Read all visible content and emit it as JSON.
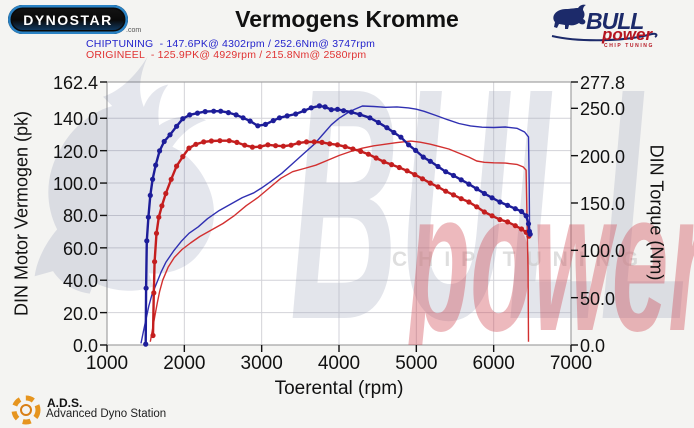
{
  "header": {
    "title": "Vermogens Kromme",
    "logo_left": {
      "name": "DYNOSTAR",
      "suffix": ".com"
    },
    "logo_right": {
      "brand": "BULL",
      "sub_brand": "power",
      "tagline": "CHIP TUNING"
    },
    "legend": [
      {
        "id": "chiptuning",
        "text": "CHIPTUNING  - 147.6PK@ 4302rpm / 252.6Nm@ 3747rpm",
        "color": "#2323cc"
      },
      {
        "id": "origineel",
        "text": "ORIGINEEL  - 125.9PK@ 4929rpm / 215.8Nm@ 2580rpm",
        "color": "#e03333"
      }
    ]
  },
  "footer": {
    "station_abbr": "A.D.S.",
    "station_name": "Advanced Dyno Station"
  },
  "watermark": {
    "brand": "BULL",
    "sub_brand": "power",
    "tagline": "CHIP TUNING"
  },
  "colors": {
    "power_chip": "#3030b2",
    "torque_chip": "#1d1d99",
    "power_orig": "#d23030",
    "torque_orig": "#c41e1e",
    "grid": "#d2d2d8",
    "frame": "#a2a2a2",
    "tick": "#111111",
    "plot_bg": "#ffffff"
  },
  "chart_data": {
    "type": "line",
    "title": "Vermogens Kromme",
    "xlabel": "Toerental (rpm)",
    "ylabel_left": "DIN Motor Vermogen (pk)",
    "ylabel_right": "DIN Torque (Nm)",
    "xlim": [
      1000,
      7000
    ],
    "ylim_left": [
      0,
      162.4
    ],
    "ylim_right": [
      0,
      277.8
    ],
    "x_ticks": [
      1000,
      2000,
      3000,
      4000,
      5000,
      6000,
      7000
    ],
    "y_left_ticks": [
      0,
      20,
      40,
      60,
      80,
      100,
      120,
      140,
      162.4
    ],
    "y_right_ticks": [
      0,
      50,
      100,
      150,
      200,
      250,
      277.8
    ],
    "grid": true,
    "peaks": {
      "chiptuning": {
        "power_pk": 147.6,
        "power_rpm": 4302,
        "torque_nm": 252.6,
        "torque_rpm": 3747
      },
      "origineel": {
        "power_pk": 125.9,
        "power_rpm": 4929,
        "torque_nm": 215.8,
        "torque_rpm": 2580
      }
    },
    "series": [
      {
        "name": "origineel-power",
        "axis": "left",
        "unit": "pk",
        "markers": false,
        "width": 1.4,
        "color": "#d23030",
        "points": [
          [
            1560,
            2
          ],
          [
            1590,
            10
          ],
          [
            1620,
            18
          ],
          [
            1650,
            26
          ],
          [
            1680,
            33
          ],
          [
            1720,
            40
          ],
          [
            1790,
            48
          ],
          [
            1870,
            54
          ],
          [
            1970,
            59
          ],
          [
            2080,
            63
          ],
          [
            2200,
            67
          ],
          [
            2350,
            71
          ],
          [
            2500,
            75
          ],
          [
            2650,
            80
          ],
          [
            2800,
            86
          ],
          [
            2950,
            91
          ],
          [
            3100,
            97
          ],
          [
            3250,
            103
          ],
          [
            3400,
            107
          ],
          [
            3550,
            109
          ],
          [
            3700,
            111
          ],
          [
            3850,
            114
          ],
          [
            4000,
            117
          ],
          [
            4150,
            119.5
          ],
          [
            4300,
            121.5
          ],
          [
            4450,
            123
          ],
          [
            4600,
            124
          ],
          [
            4750,
            125
          ],
          [
            4929,
            125.9
          ],
          [
            5050,
            125.2
          ],
          [
            5180,
            124
          ],
          [
            5300,
            122.5
          ],
          [
            5420,
            121
          ],
          [
            5550,
            118.5
          ],
          [
            5680,
            116
          ],
          [
            5780,
            113.6
          ],
          [
            5880,
            112.8
          ],
          [
            6000,
            112.5
          ],
          [
            6150,
            112.3
          ],
          [
            6300,
            111.5
          ],
          [
            6380,
            110
          ],
          [
            6420,
            108
          ],
          [
            6445,
            44
          ],
          [
            6450,
            2
          ]
        ]
      },
      {
        "name": "chiptuning-power",
        "axis": "left",
        "unit": "pk",
        "markers": false,
        "width": 1.4,
        "color": "#3030b2",
        "points": [
          [
            1440,
            1
          ],
          [
            1470,
            8
          ],
          [
            1500,
            15
          ],
          [
            1540,
            24
          ],
          [
            1580,
            31
          ],
          [
            1640,
            38
          ],
          [
            1700,
            45
          ],
          [
            1760,
            51
          ],
          [
            1860,
            58
          ],
          [
            1960,
            64
          ],
          [
            2060,
            69
          ],
          [
            2180,
            73
          ],
          [
            2300,
            78
          ],
          [
            2450,
            83
          ],
          [
            2600,
            87
          ],
          [
            2750,
            91
          ],
          [
            2900,
            94
          ],
          [
            3000,
            97
          ],
          [
            3120,
            101
          ],
          [
            3260,
            106
          ],
          [
            3400,
            112
          ],
          [
            3540,
            118
          ],
          [
            3680,
            124
          ],
          [
            3790,
            130
          ],
          [
            3900,
            136
          ],
          [
            4000,
            140
          ],
          [
            4100,
            143
          ],
          [
            4200,
            145.5
          ],
          [
            4302,
            147.6
          ],
          [
            4450,
            147.3
          ],
          [
            4600,
            146.8
          ],
          [
            4750,
            147
          ],
          [
            4900,
            146.4
          ],
          [
            5000,
            145.6
          ],
          [
            5100,
            144.3
          ],
          [
            5250,
            141.8
          ],
          [
            5400,
            139.2
          ],
          [
            5550,
            136.8
          ],
          [
            5700,
            135.3
          ],
          [
            5850,
            134.5
          ],
          [
            6000,
            134.3
          ],
          [
            6150,
            134.6
          ],
          [
            6300,
            133.8
          ],
          [
            6400,
            131.5
          ],
          [
            6450,
            128.5
          ],
          [
            6460,
            100
          ],
          [
            6465,
            67
          ]
        ]
      },
      {
        "name": "origineel-torque",
        "axis": "right",
        "unit": "Nm",
        "markers": true,
        "width": 2.4,
        "color": "#c41e1e",
        "points": [
          [
            1595,
            10
          ],
          [
            1605,
            55
          ],
          [
            1615,
            88
          ],
          [
            1640,
            118
          ],
          [
            1670,
            135
          ],
          [
            1710,
            147
          ],
          [
            1760,
            160
          ],
          [
            1830,
            175
          ],
          [
            1900,
            189
          ],
          [
            1980,
            199
          ],
          [
            2060,
            208
          ],
          [
            2150,
            212
          ],
          [
            2250,
            214.5
          ],
          [
            2350,
            215.5
          ],
          [
            2460,
            215.8
          ],
          [
            2580,
            215.8
          ],
          [
            2680,
            214
          ],
          [
            2780,
            211
          ],
          [
            2880,
            209
          ],
          [
            2980,
            209.5
          ],
          [
            3080,
            211.5
          ],
          [
            3180,
            210.5
          ],
          [
            3280,
            210
          ],
          [
            3380,
            211
          ],
          [
            3480,
            213.5
          ],
          [
            3580,
            214.5
          ],
          [
            3680,
            214.5
          ],
          [
            3780,
            214
          ],
          [
            3880,
            212.5
          ],
          [
            3980,
            211.5
          ],
          [
            4080,
            209.5
          ],
          [
            4180,
            207
          ],
          [
            4280,
            204.5
          ],
          [
            4380,
            201.5
          ],
          [
            4480,
            197.5
          ],
          [
            4580,
            193.5
          ],
          [
            4680,
            190.5
          ],
          [
            4780,
            187.5
          ],
          [
            4880,
            184
          ],
          [
            4980,
            180
          ],
          [
            5080,
            175.5
          ],
          [
            5180,
            171
          ],
          [
            5280,
            167
          ],
          [
            5380,
            162.5
          ],
          [
            5480,
            158.5
          ],
          [
            5580,
            154.5
          ],
          [
            5680,
            151
          ],
          [
            5780,
            146
          ],
          [
            5880,
            140.5
          ],
          [
            5980,
            136.5
          ],
          [
            6080,
            132.5
          ],
          [
            6180,
            130
          ],
          [
            6280,
            126
          ],
          [
            6360,
            122.5
          ],
          [
            6420,
            119
          ],
          [
            6455,
            115
          ]
        ]
      },
      {
        "name": "chiptuning-torque",
        "axis": "right",
        "unit": "Nm",
        "markers": true,
        "width": 2.4,
        "color": "#1d1d99",
        "points": [
          [
            1500,
            1
          ],
          [
            1505,
            60
          ],
          [
            1515,
            110
          ],
          [
            1535,
            135
          ],
          [
            1560,
            158
          ],
          [
            1590,
            175
          ],
          [
            1630,
            190
          ],
          [
            1680,
            205
          ],
          [
            1740,
            215
          ],
          [
            1815,
            222
          ],
          [
            1900,
            231
          ],
          [
            1980,
            239
          ],
          [
            2070,
            243
          ],
          [
            2170,
            245
          ],
          [
            2270,
            246.5
          ],
          [
            2380,
            247
          ],
          [
            2470,
            247
          ],
          [
            2570,
            245.5
          ],
          [
            2670,
            243
          ],
          [
            2760,
            240
          ],
          [
            2850,
            236.5
          ],
          [
            2950,
            231.5
          ],
          [
            3050,
            233
          ],
          [
            3150,
            237
          ],
          [
            3230,
            240
          ],
          [
            3330,
            242
          ],
          [
            3440,
            244
          ],
          [
            3550,
            247.5
          ],
          [
            3640,
            250.5
          ],
          [
            3747,
            252.6
          ],
          [
            3820,
            251.5
          ],
          [
            3900,
            248.5
          ],
          [
            3980,
            249
          ],
          [
            4060,
            247.5
          ],
          [
            4160,
            246
          ],
          [
            4270,
            243.5
          ],
          [
            4400,
            240
          ],
          [
            4510,
            235
          ],
          [
            4620,
            229.5
          ],
          [
            4710,
            224.5
          ],
          [
            4800,
            219.5
          ],
          [
            4900,
            211.5
          ],
          [
            4990,
            205.5
          ],
          [
            5090,
            198.5
          ],
          [
            5180,
            194
          ],
          [
            5280,
            188.5
          ],
          [
            5380,
            183
          ],
          [
            5480,
            179
          ],
          [
            5580,
            174.5
          ],
          [
            5680,
            170
          ],
          [
            5780,
            165
          ],
          [
            5880,
            160
          ],
          [
            5980,
            155.5
          ],
          [
            6080,
            151
          ],
          [
            6180,
            147.5
          ],
          [
            6280,
            144
          ],
          [
            6360,
            141
          ],
          [
            6420,
            136.5
          ],
          [
            6450,
            128
          ],
          [
            6462,
            120
          ],
          [
            6472,
            117
          ]
        ]
      }
    ]
  }
}
